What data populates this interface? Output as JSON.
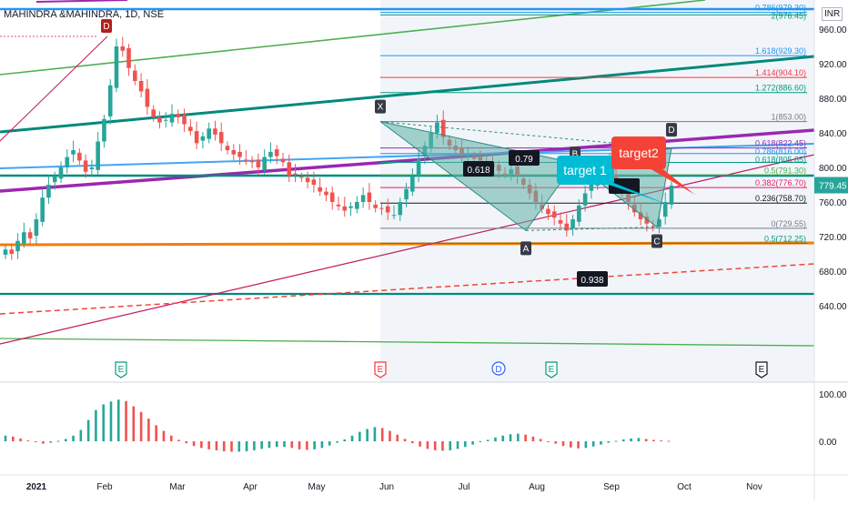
{
  "header": {
    "symbol_title": "MAHINDRA &MAHINDRA, 1D, NSE",
    "currency": "INR"
  },
  "colors": {
    "up": "#26a69a",
    "down": "#ef5350",
    "harmonic_fill": "#5fb0a8",
    "purple": "#9c27b0",
    "teal": "#00897b",
    "blue": "#2196f3",
    "orange": "#f57c00",
    "green": "#4caf50",
    "red": "#f44336"
  },
  "chart_data": [
    {
      "type": "line",
      "title": "",
      "ylim": [
        635,
        985
      ],
      "price_axis": {
        "ticks": [
          "960.00",
          "920.00",
          "880.00",
          "840.00",
          "800.00",
          "760.00",
          "720.00",
          "680.00",
          "640.00"
        ],
        "last_price": "779.45"
      },
      "time_axis": {
        "labels": [
          "2021",
          "Feb",
          "Mar",
          "Apr",
          "May",
          "Jun",
          "Jul",
          "Aug",
          "Sep",
          "Oct",
          "Nov"
        ]
      },
      "fib_levels": [
        {
          "ratio": "0.786",
          "value": "979.30",
          "label": "0.786(979.30)"
        },
        {
          "ratio": "2",
          "value": "976.45",
          "label": "2(976.45)"
        },
        {
          "ratio": "1.618",
          "value": "929.30",
          "label": "1.618(929.30)"
        },
        {
          "ratio": "1.414",
          "value": "904.10",
          "label": "1.414(904.10)"
        },
        {
          "ratio": "1.272",
          "value": "886.60",
          "label": "1.272(886.60)"
        },
        {
          "ratio": "1",
          "value": "853.00",
          "label": "1(853.00)"
        },
        {
          "ratio": "0.618",
          "value": "822.45",
          "label": "0.618(822.45)"
        },
        {
          "ratio": "0.786",
          "value": "816.00",
          "label": "0.786(816.00)"
        },
        {
          "ratio": "0.618",
          "value": "805.85",
          "label": "0.618(805.85)"
        },
        {
          "ratio": "0.5",
          "value": "791.30",
          "label": "0.5(791.30)"
        },
        {
          "ratio": "0.382",
          "value": "776.70",
          "label": "0.382(776.70)"
        },
        {
          "ratio": "0.236",
          "value": "758.70",
          "label": "0.236(758.70)"
        },
        {
          "ratio": "0",
          "value": "729.55",
          "label": "0(729.55)"
        },
        {
          "ratio": "0.5",
          "value": "712.25",
          "label": "0.5(712.25)"
        }
      ],
      "pattern_points": [
        {
          "name": "X",
          "value": 853
        },
        {
          "name": "A",
          "value": 727
        },
        {
          "name": "B",
          "value": 805
        },
        {
          "name": "C",
          "value": 731
        },
        {
          "name": "D",
          "value": 822
        }
      ],
      "pattern_ratios": [
        "0.618",
        "0.79",
        "0.938"
      ],
      "top_left_point": "D",
      "targets": [
        {
          "label": "target 1",
          "value": 814
        },
        {
          "label": "target2",
          "value": 806
        }
      ],
      "event_markers": [
        "E",
        "E",
        "D",
        "E",
        "E"
      ],
      "price_series_close": [
        705,
        700,
        715,
        725,
        718,
        740,
        765,
        780,
        790,
        800,
        812,
        820,
        808,
        795,
        800,
        830,
        856,
        895,
        940,
        935,
        915,
        900,
        888,
        870,
        858,
        852,
        855,
        862,
        858,
        850,
        842,
        828,
        836,
        845,
        838,
        828,
        820,
        815,
        812,
        808,
        806,
        800,
        812,
        818,
        813,
        806,
        790,
        792,
        788,
        783,
        780,
        772,
        768,
        760,
        755,
        750,
        755,
        760,
        768,
        760,
        753,
        752,
        748,
        745,
        760,
        775,
        790,
        810,
        825,
        840,
        852,
        835,
        825,
        820,
        815,
        813,
        810,
        808,
        804,
        800,
        796,
        792,
        798,
        790,
        780,
        770,
        760,
        752,
        746,
        742,
        735,
        727,
        740,
        756,
        770,
        782,
        795,
        805,
        795,
        782,
        772,
        760,
        748,
        740,
        735,
        731,
        740,
        760,
        779
      ]
    },
    {
      "type": "bar",
      "title": "",
      "ylim": [
        -60,
        120
      ],
      "axis_ticks": [
        "100.00",
        "0.00"
      ],
      "values": [
        12,
        10,
        6,
        2,
        -2,
        -5,
        -3,
        1,
        5,
        12,
        24,
        45,
        66,
        78,
        84,
        88,
        85,
        74,
        62,
        48,
        34,
        22,
        12,
        3,
        -4,
        -10,
        -14,
        -17,
        -19,
        -21,
        -22,
        -22,
        -21,
        -19,
        -16,
        -14,
        -12,
        -12,
        -14,
        -17,
        -18,
        -17,
        -14,
        -9,
        -3,
        4,
        12,
        20,
        26,
        30,
        28,
        22,
        14,
        5,
        -4,
        -11,
        -16,
        -19,
        -20,
        -19,
        -16,
        -12,
        -7,
        -2,
        3,
        8,
        12,
        15,
        16,
        14,
        10,
        5,
        0,
        -5,
        -10,
        -13,
        -15,
        -14,
        -11,
        -7,
        -3,
        1,
        4,
        6,
        7,
        5,
        3,
        2,
        1
      ]
    }
  ]
}
